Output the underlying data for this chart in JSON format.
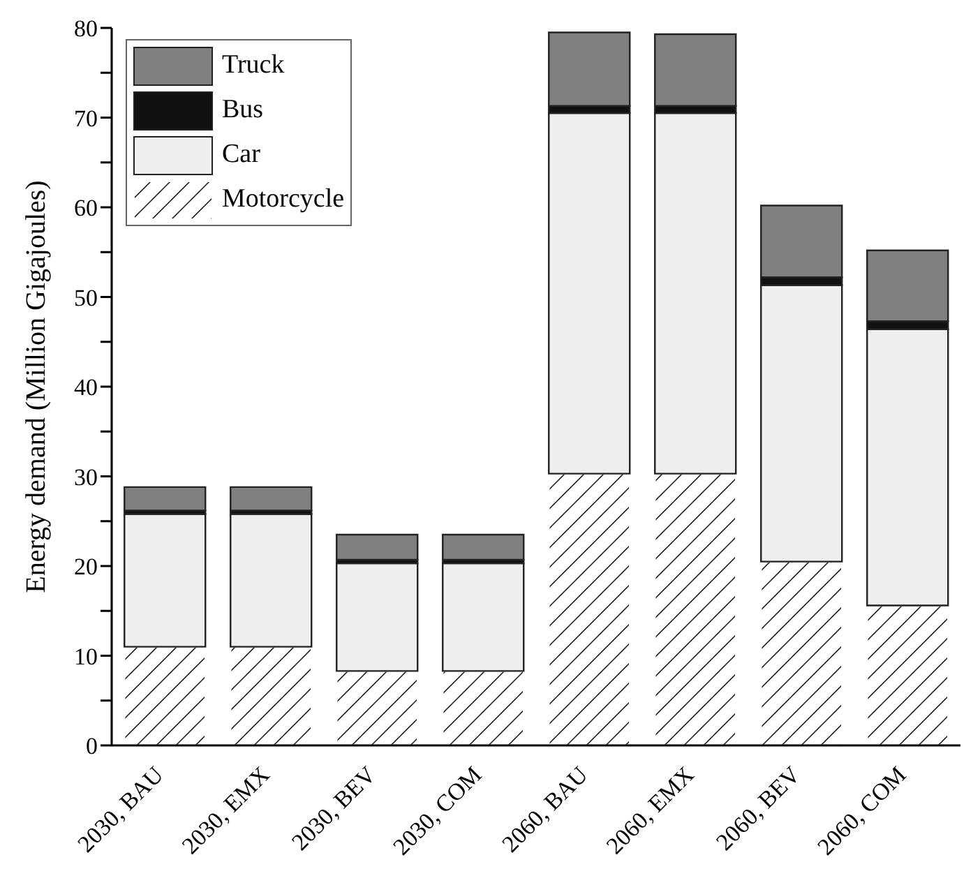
{
  "chart_data": {
    "type": "bar",
    "ylabel": "Energy demand (Million Gigajoules)",
    "categories": [
      "2030, BAU",
      "2030, EMX",
      "2030, BEV",
      "2030, COM",
      "2060, BAU",
      "2060, EMX",
      "2060, BEV",
      "2060, COM"
    ],
    "stacked": true,
    "series": [
      {
        "name": "Motorcycle",
        "color": "#ffffff",
        "values": [
          11.0,
          11.0,
          8.3,
          8.3,
          30.3,
          30.3,
          20.5,
          15.6
        ]
      },
      {
        "name": "Car",
        "color": "#eeeeee",
        "values": [
          14.8,
          14.8,
          12.0,
          12.0,
          40.2,
          40.2,
          30.8,
          30.8
        ]
      },
      {
        "name": "Bus",
        "color": "#111111",
        "values": [
          0.4,
          0.4,
          0.4,
          0.4,
          0.8,
          0.8,
          0.9,
          0.9
        ]
      },
      {
        "name": "Truck",
        "color": "#808080",
        "values": [
          2.6,
          2.6,
          2.8,
          2.8,
          8.2,
          8.0,
          8.0,
          7.9
        ]
      }
    ],
    "ylim": [
      0,
      80
    ],
    "yticks": [
      0,
      {
        "value": 5,
        "label": null
      },
      10,
      {
        "value": 15,
        "label": null
      },
      20,
      {
        "value": 25,
        "label": null
      },
      30,
      {
        "value": 35,
        "label": null
      },
      40,
      {
        "value": 45,
        "label": null
      },
      50,
      {
        "value": 55,
        "label": null
      },
      60,
      {
        "value": 65,
        "label": null
      },
      70,
      {
        "value": 75,
        "label": null
      },
      80
    ],
    "grid": false,
    "legend": "top left"
  }
}
